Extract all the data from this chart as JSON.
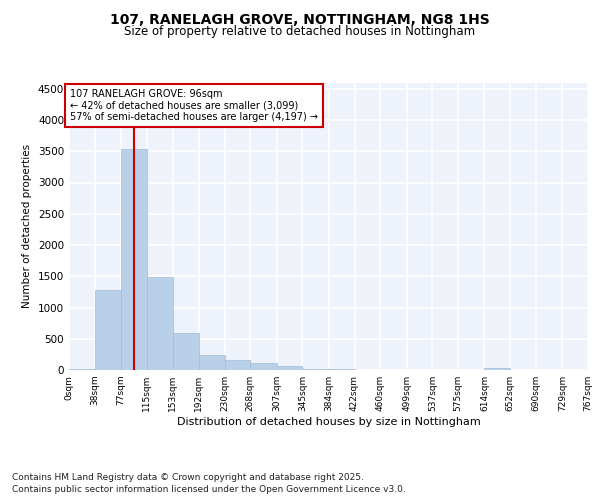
{
  "title1": "107, RANELAGH GROVE, NOTTINGHAM, NG8 1HS",
  "title2": "Size of property relative to detached houses in Nottingham",
  "xlabel": "Distribution of detached houses by size in Nottingham",
  "ylabel": "Number of detached properties",
  "bin_edges": [
    0,
    38,
    77,
    115,
    153,
    192,
    230,
    268,
    307,
    345,
    384,
    422,
    460,
    499,
    537,
    575,
    614,
    652,
    690,
    729,
    767
  ],
  "bar_heights": [
    10,
    1280,
    3530,
    1490,
    600,
    245,
    160,
    120,
    65,
    22,
    15,
    5,
    0,
    0,
    0,
    0,
    28,
    0,
    0,
    0
  ],
  "bar_color": "#b8d0e8",
  "bar_edgecolor": "#a0bcd8",
  "property_size": 96,
  "annotation_title": "107 RANELAGH GROVE: 96sqm",
  "annotation_line1": "← 42% of detached houses are smaller (3,099)",
  "annotation_line2": "57% of semi-detached houses are larger (4,197) →",
  "vline_color": "#cc0000",
  "annotation_box_edgecolor": "#cc0000",
  "ylim": [
    0,
    4600
  ],
  "yticks": [
    0,
    500,
    1000,
    1500,
    2000,
    2500,
    3000,
    3500,
    4000,
    4500
  ],
  "background_color": "#eef2fa",
  "grid_color": "#ffffff",
  "footer1": "Contains HM Land Registry data © Crown copyright and database right 2025.",
  "footer2": "Contains public sector information licensed under the Open Government Licence v3.0.",
  "tick_labels": [
    "0sqm",
    "38sqm",
    "77sqm",
    "115sqm",
    "153sqm",
    "192sqm",
    "230sqm",
    "268sqm",
    "307sqm",
    "345sqm",
    "384sqm",
    "422sqm",
    "460sqm",
    "499sqm",
    "537sqm",
    "575sqm",
    "614sqm",
    "652sqm",
    "690sqm",
    "729sqm",
    "767sqm"
  ]
}
